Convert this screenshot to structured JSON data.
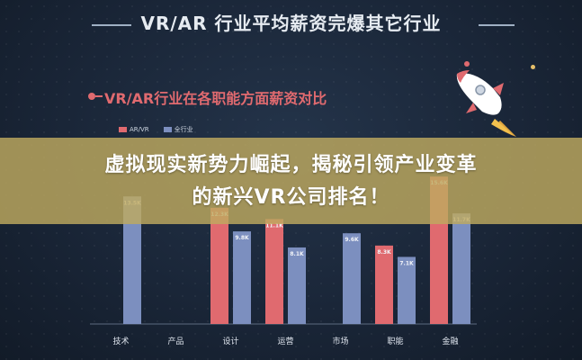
{
  "header": {
    "title": "VR/AR 行业平均薪资完爆其它行业"
  },
  "colors": {
    "accent_red": "#e06a6f",
    "vr_series": "#e06a6f",
    "all_series": "#7c8fbf",
    "banner_bg": "#beaa5f"
  },
  "banner": {
    "line1": "虚拟现实新势力崛起，揭秘引领产业变革",
    "line2": "的新兴VR公司排名！"
  },
  "icons": {
    "rocket": "rocket-icon"
  },
  "chart_data": {
    "type": "bar",
    "title": "VR/AR行业在各职能方面薪资对比",
    "categories": [
      "技术",
      "产品",
      "设计",
      "运营",
      "市场",
      "职能",
      "金融"
    ],
    "series": [
      {
        "name": "AR/VR",
        "values": [
          null,
          null,
          12.3,
          11.1,
          null,
          8.3,
          15.6
        ]
      },
      {
        "name": "全行业",
        "values": [
          13.5,
          null,
          9.8,
          8.1,
          9.6,
          7.1,
          11.7
        ]
      }
    ],
    "value_labels": {
      "AR/VR": [
        "",
        "",
        "12.3K",
        "11.1K",
        "",
        "8.3K",
        "15.6K"
      ],
      "全行业": [
        "13.5K",
        "",
        "9.8K",
        "8.1K",
        "9.6K",
        "7.1K",
        "11.7K"
      ]
    },
    "xlabel": "",
    "ylabel": "",
    "ylim": [
      0,
      20
    ],
    "grid": false,
    "legend_position": "top-left"
  }
}
